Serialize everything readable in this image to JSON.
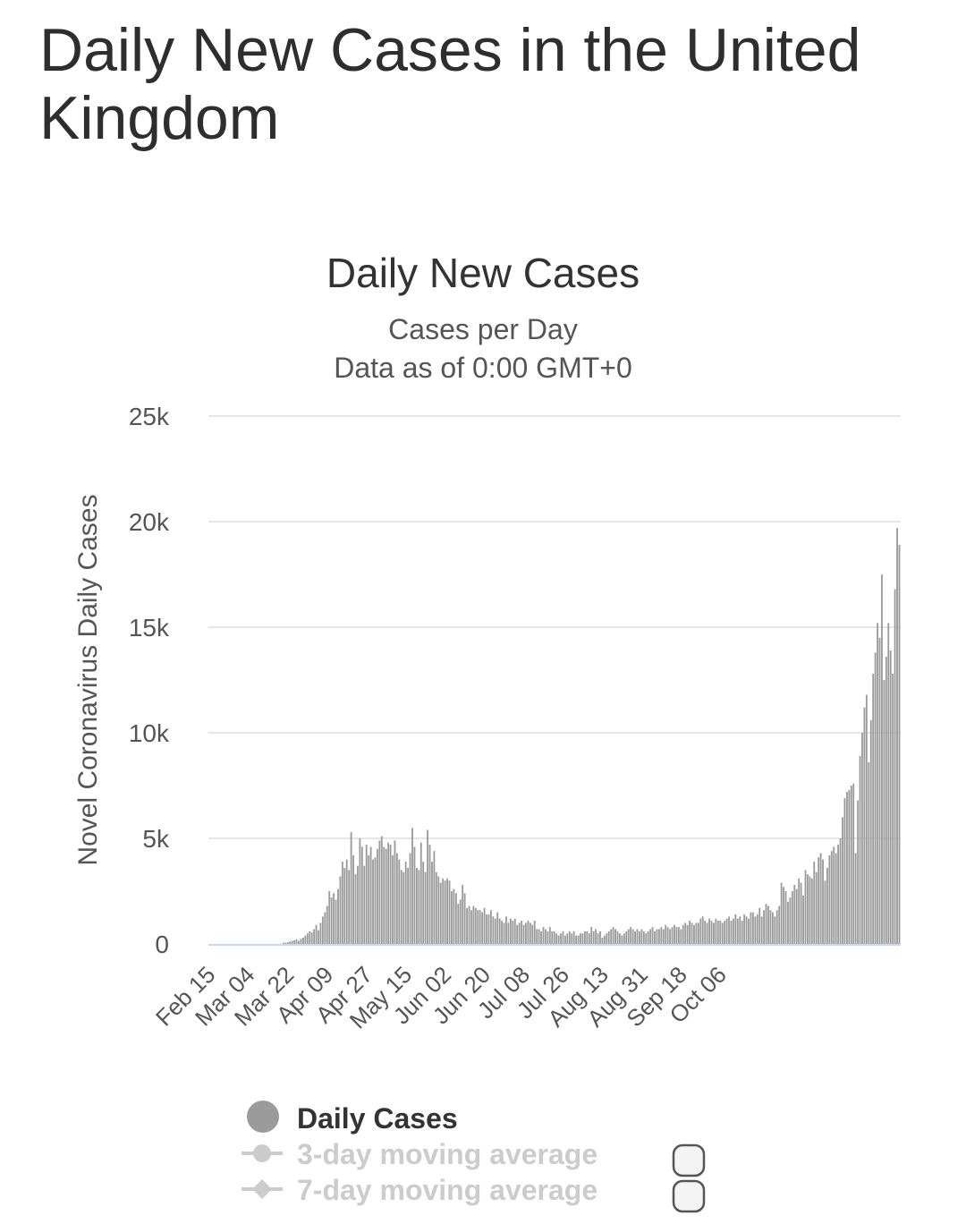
{
  "page": {
    "title": "Daily New Cases in the United Kingdom"
  },
  "colors": {
    "bar": "#9b9b9b",
    "grid": "#e6e6e6",
    "axis": "#ccd6eb",
    "legend_inactive": "#cccccc"
  },
  "chart_data": {
    "type": "bar",
    "title": "Daily New Cases",
    "subtitle_lines": [
      "Cases per Day",
      "Data as of 0:00 GMT+0"
    ],
    "xlabel": "",
    "ylabel": "Novel Coronavirus Daily Cases",
    "ylim": [
      0,
      25000
    ],
    "yticks": [
      0,
      5000,
      10000,
      15000,
      20000,
      25000
    ],
    "ytick_labels": [
      "0",
      "5k",
      "10k",
      "15k",
      "20k",
      "25k"
    ],
    "start_date": "Feb 15",
    "xtick_every_days": 18,
    "xtick_labels": [
      "Feb 15",
      "Mar 04",
      "Mar 22",
      "Apr 09",
      "Apr 27",
      "May 15",
      "Jun 02",
      "Jun 20",
      "Jul 08",
      "Jul 26",
      "Aug 13",
      "Aug 31",
      "Sep 18",
      "Oct 06"
    ],
    "grid": true,
    "legend": {
      "position": "bottom",
      "items": [
        {
          "label": "Daily Cases",
          "active": true
        },
        {
          "label": "3-day moving average",
          "active": false
        },
        {
          "label": "7-day moving average",
          "active": false
        }
      ]
    },
    "series": [
      {
        "name": "Daily Cases",
        "values": [
          0,
          0,
          0,
          0,
          0,
          0,
          0,
          0,
          0,
          0,
          0,
          0,
          0,
          0,
          0,
          0,
          0,
          0,
          0,
          0,
          0,
          0,
          0,
          0,
          0,
          0,
          0,
          0,
          0,
          0,
          0,
          0,
          0,
          0,
          50,
          60,
          80,
          120,
          150,
          180,
          220,
          150,
          250,
          300,
          400,
          500,
          600,
          550,
          700,
          900,
          650,
          1000,
          1300,
          1500,
          1800,
          2500,
          2200,
          2400,
          2100,
          2600,
          3200,
          3900,
          3600,
          4000,
          3500,
          5300,
          4200,
          3300,
          3700,
          5000,
          4600,
          3700,
          4700,
          4200,
          4600,
          4000,
          4100,
          4500,
          4900,
          5100,
          4600,
          4500,
          4800,
          4700,
          4200,
          4900,
          4300,
          4000,
          3500,
          3400,
          3900,
          3600,
          4300,
          5500,
          4600,
          3600,
          3500,
          4800,
          3900,
          3400,
          5400,
          4700,
          3900,
          4400,
          3400,
          3200,
          2900,
          3100,
          3000,
          3100,
          3000,
          2500,
          2600,
          2400,
          1900,
          2100,
          2800,
          2400,
          1700,
          1800,
          1600,
          1800,
          1700,
          1600,
          1600,
          1500,
          1700,
          1400,
          1400,
          1600,
          1300,
          1200,
          1500,
          1200,
          1100,
          1000,
          1300,
          1000,
          1200,
          1100,
          1200,
          900,
          1000,
          1100,
          900,
          1000,
          1100,
          1000,
          900,
          1100,
          700,
          700,
          600,
          800,
          700,
          600,
          800,
          600,
          600,
          500,
          400,
          500,
          600,
          400,
          500,
          600,
          500,
          600,
          400,
          400,
          500,
          500,
          600,
          600,
          500,
          800,
          600,
          700,
          500,
          600,
          300,
          400,
          500,
          600,
          700,
          800,
          700,
          600,
          500,
          400,
          500,
          600,
          700,
          800,
          700,
          600,
          700,
          600,
          700,
          600,
          500,
          600,
          700,
          800,
          600,
          700,
          700,
          800,
          700,
          900,
          800,
          700,
          800,
          900,
          800,
          800,
          700,
          900,
          1000,
          900,
          1100,
          1000,
          900,
          1000,
          1000,
          1200,
          1300,
          1100,
          1000,
          1200,
          1100,
          1000,
          1200,
          1100,
          1100,
          1000,
          1100,
          1200,
          1300,
          1100,
          1200,
          1400,
          1200,
          1300,
          1100,
          1400,
          1300,
          1200,
          1500,
          1500,
          1300,
          1400,
          1700,
          1300,
          1600,
          1900,
          1800,
          1600,
          1500,
          1300,
          1600,
          1800,
          2900,
          2700,
          2500,
          2000,
          2200,
          2500,
          2800,
          2600,
          3100,
          2900,
          2300,
          3500,
          3300,
          3200,
          3100,
          3900,
          3400,
          4100,
          4300,
          4000,
          3000,
          3600,
          4200,
          4400,
          4600,
          4300,
          4700,
          5000,
          6000,
          6900,
          7200,
          7300,
          7500,
          7600,
          4300,
          6800,
          8900,
          10000,
          11200,
          11800,
          8600,
          10600,
          12800,
          13800,
          15200,
          14500,
          17500,
          12500,
          13600,
          15200,
          13900,
          12800,
          16800,
          19700,
          18900
        ]
      }
    ]
  }
}
